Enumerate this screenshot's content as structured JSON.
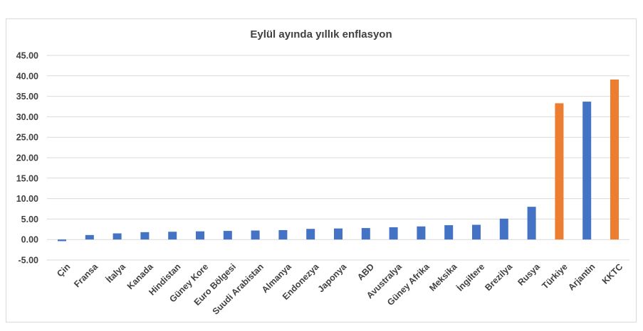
{
  "chart_data": {
    "type": "bar",
    "title": "Eylül ayında yıllık enflasyon",
    "xlabel": "",
    "ylabel": "",
    "ylim": [
      -5,
      45
    ],
    "yticks": [
      "-5.00",
      "0.00",
      "5.00",
      "10.00",
      "15.00",
      "20.00",
      "25.00",
      "30.00",
      "35.00",
      "40.00",
      "45.00"
    ],
    "grid": true,
    "legend": "none",
    "categories": [
      "Çin",
      "Fransa",
      "İtalya",
      "Kanada",
      "Hindistan",
      "Güney Kore",
      "Euro Bölgesi",
      "Suudi Arabistan",
      "Almanya",
      "Endonezya",
      "Japonya",
      "ABD",
      "Avustralya",
      "Güney Afrika",
      "Meksika",
      "İngiltere",
      "Brezilya",
      "Rusya",
      "Türkiye",
      "Arjantin",
      "KKTC"
    ],
    "values": [
      -0.4,
      1.1,
      1.5,
      1.8,
      1.9,
      2.0,
      2.1,
      2.2,
      2.3,
      2.6,
      2.7,
      2.8,
      3.0,
      3.2,
      3.5,
      3.6,
      5.1,
      8.0,
      33.3,
      33.7,
      39.1
    ],
    "colors": [
      "#4472C4",
      "#4472C4",
      "#4472C4",
      "#4472C4",
      "#4472C4",
      "#4472C4",
      "#4472C4",
      "#4472C4",
      "#4472C4",
      "#4472C4",
      "#4472C4",
      "#4472C4",
      "#4472C4",
      "#4472C4",
      "#4472C4",
      "#4472C4",
      "#4472C4",
      "#4472C4",
      "#ED7D31",
      "#4472C4",
      "#ED7D31"
    ]
  }
}
